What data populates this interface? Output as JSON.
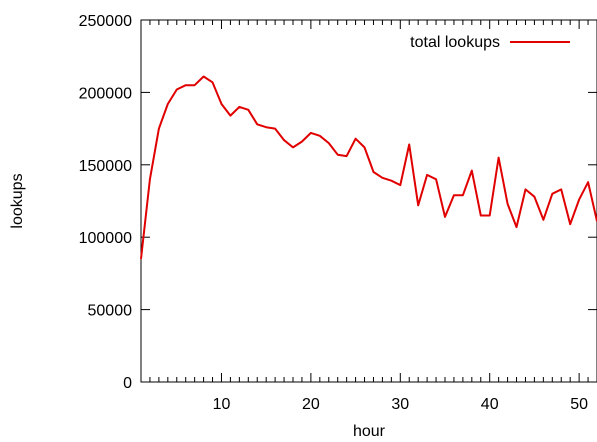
{
  "chart_data": {
    "type": "line",
    "title": "",
    "xlabel": "hour",
    "ylabel": "lookups",
    "xlim": [
      1,
      52
    ],
    "ylim": [
      0,
      250000
    ],
    "grid": false,
    "legend_placement": "top-right",
    "x_ticks": [
      "10",
      "20",
      "30",
      "40",
      "50"
    ],
    "y_ticks": [
      "0",
      "50000",
      "100000",
      "150000",
      "200000",
      "250000"
    ],
    "series": [
      {
        "name": "total lookups",
        "color": "#e00000",
        "x": [
          1,
          2,
          3,
          4,
          5,
          6,
          7,
          8,
          9,
          10,
          11,
          12,
          13,
          14,
          15,
          16,
          17,
          18,
          19,
          20,
          21,
          22,
          23,
          24,
          25,
          26,
          27,
          28,
          29,
          30,
          31,
          32,
          33,
          34,
          35,
          36,
          37,
          38,
          39,
          40,
          41,
          42,
          43,
          44,
          45,
          46,
          47,
          48,
          49,
          50,
          51,
          52
        ],
        "y": [
          85000,
          140000,
          175000,
          192000,
          202000,
          205000,
          205000,
          211000,
          207000,
          192000,
          184000,
          190000,
          188000,
          178000,
          176000,
          175000,
          167000,
          162000,
          166000,
          172000,
          170000,
          165000,
          157000,
          156000,
          168000,
          162000,
          145000,
          141000,
          139000,
          136000,
          164000,
          122000,
          143000,
          140000,
          114000,
          129000,
          129000,
          146000,
          115000,
          115000,
          155000,
          123000,
          107000,
          133000,
          128000,
          112000,
          130000,
          133000,
          109000,
          126000,
          138000,
          111000
        ]
      }
    ]
  }
}
